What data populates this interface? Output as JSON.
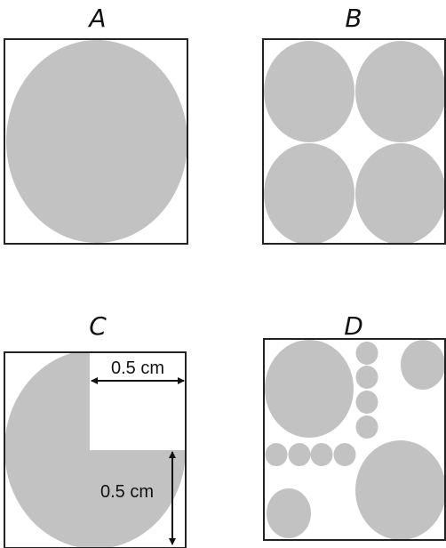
{
  "panels": {
    "a": {
      "label": "A"
    },
    "b": {
      "label": "B"
    },
    "c": {
      "label": "C",
      "top_dimension": "0.5 cm",
      "side_dimension": "0.5 cm"
    },
    "d": {
      "label": "D"
    }
  },
  "colors": {
    "shape_fill": "#c2c2c2",
    "border": "#222222",
    "background": "#ffffff"
  }
}
